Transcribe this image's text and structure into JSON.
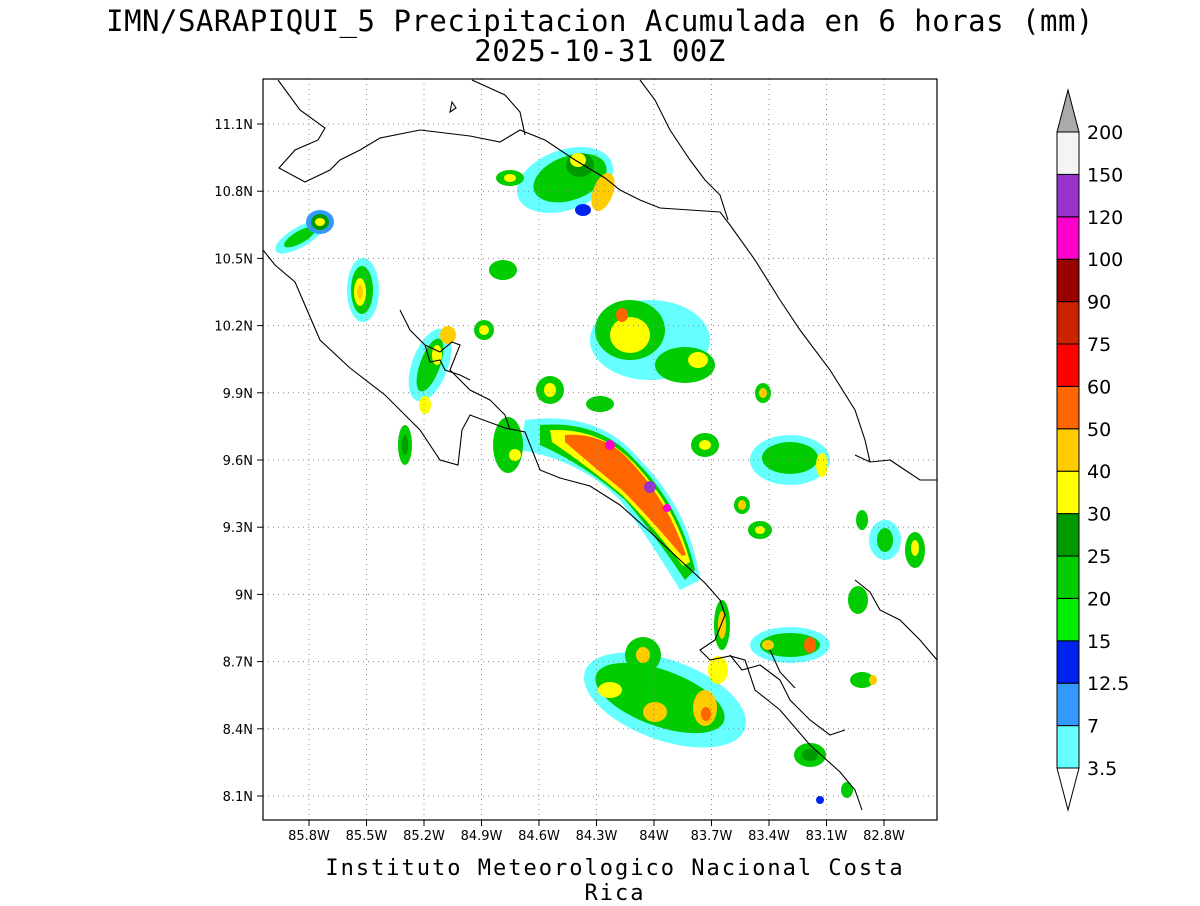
{
  "header": {
    "title": "IMN/SARAPIQUI_5 Precipitacion Acumulada en 6 horas (mm)",
    "subtitle": "2025-10-31 00Z"
  },
  "footer": {
    "credit": "Instituto Meteorologico Nacional Costa Rica"
  },
  "map": {
    "lon_ticks": [
      "85.8W",
      "85.5W",
      "85.2W",
      "84.9W",
      "84.6W",
      "84.3W",
      "84W",
      "83.7W",
      "83.4W",
      "83.1W",
      "82.8W"
    ],
    "lat_ticks": [
      "11.1N",
      "10.8N",
      "10.5N",
      "10.2N",
      "9.9N",
      "9.6N",
      "9.3N",
      "9N",
      "8.7N",
      "8.4N",
      "8.1N"
    ]
  },
  "colorbar": {
    "levels": [
      "3.5",
      "7",
      "12.5",
      "15",
      "20",
      "25",
      "30",
      "40",
      "50",
      "60",
      "75",
      "90",
      "100",
      "120",
      "150",
      "200"
    ],
    "colors": [
      "#66ffff",
      "#3399ff",
      "#0022ee",
      "#00ee00",
      "#00cc00",
      "#009900",
      "#ffff00",
      "#ffcc00",
      "#ff6600",
      "#ff0000",
      "#cc2200",
      "#990000",
      "#ff00cc",
      "#9933cc",
      "#f4f4f4",
      "#aaaaaa"
    ]
  }
}
